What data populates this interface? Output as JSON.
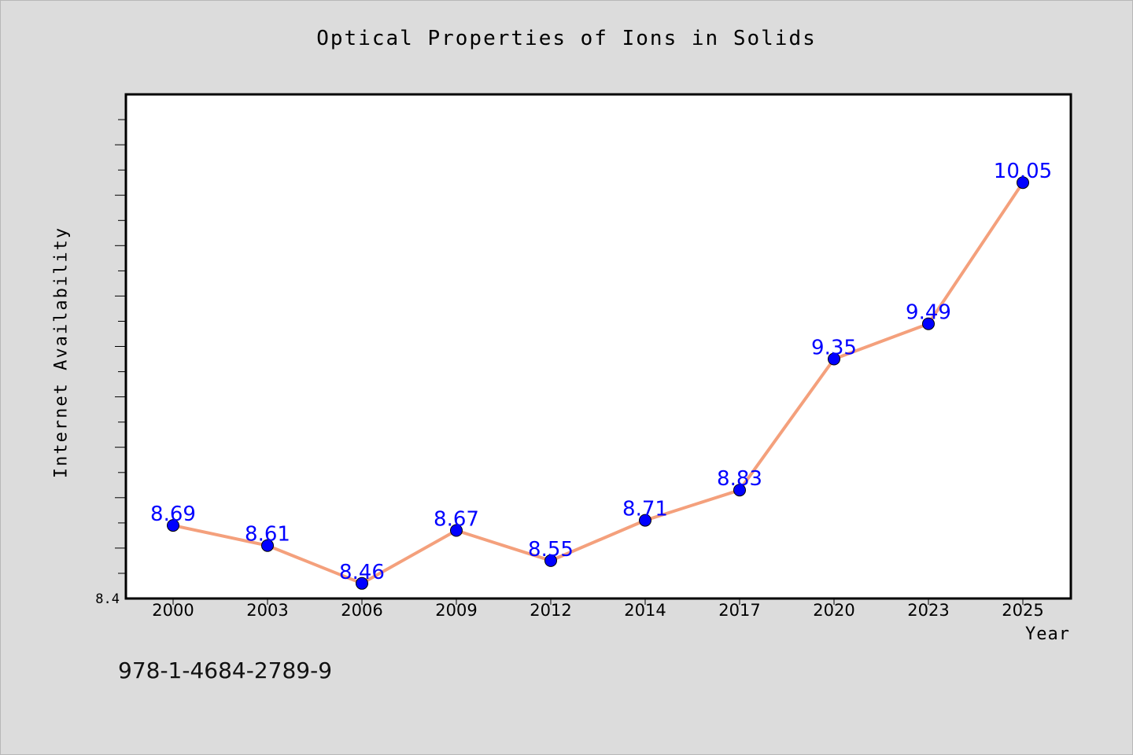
{
  "chart_data": {
    "type": "line",
    "title": "Optical Properties of Ions in Solids",
    "xlabel": "Year",
    "ylabel": "Internet Availability",
    "categories": [
      "2000",
      "2003",
      "2006",
      "2009",
      "2012",
      "2014",
      "2017",
      "2020",
      "2023",
      "2025"
    ],
    "series": [
      {
        "values": [
          8.69,
          8.61,
          8.46,
          8.67,
          8.55,
          8.71,
          8.83,
          9.35,
          9.49,
          10.05
        ]
      }
    ],
    "ylim": [
      8.4,
      10.4
    ],
    "y_tick_labels": [
      "8.4"
    ],
    "grid": false,
    "line_color": "#f4a07c",
    "marker_color": "#0000ff",
    "data_label_color": "#0000ff"
  },
  "isbn": "978-1-4684-2789-9"
}
